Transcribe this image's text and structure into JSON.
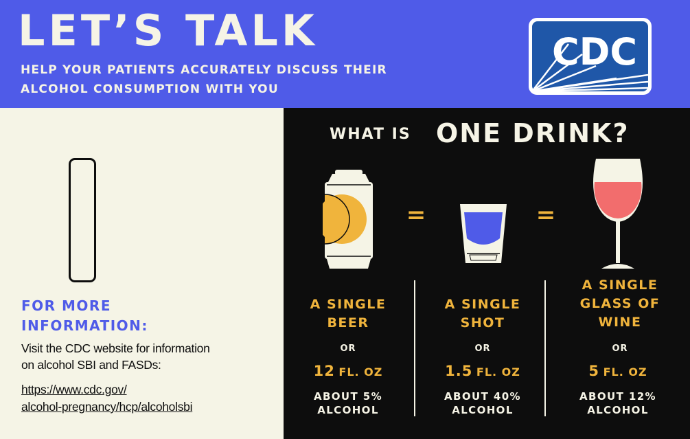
{
  "header": {
    "title": "LET’S TALK",
    "subtitle_lines": [
      "HELP YOUR PATIENTS ACCURATELY DISCUSS THEIR",
      "ALCOHOL CONSUMPTION WITH YOU"
    ],
    "logo_text": "CDC"
  },
  "info": {
    "heading_lines": [
      "FOR MORE",
      "INFORMATION:"
    ],
    "text_lines": [
      "Visit the CDC website for information",
      "on alcohol SBI and FASDs:"
    ],
    "link_lines": [
      "https://www.cdc.gov/",
      "alcohol-pregnancy/hcp/alcoholsbi"
    ]
  },
  "question": {
    "prefix": "WHAT IS",
    "emphasis": "ONE DRINK?"
  },
  "equals": "=",
  "drinks": [
    {
      "name_lines": [
        "A SINGLE",
        "BEER"
      ],
      "or": "OR",
      "amount": "12",
      "unit": "FL. OZ",
      "percent_lines": [
        "ABOUT 5%",
        "ALCOHOL"
      ],
      "icon": "beer-can-icon"
    },
    {
      "name_lines": [
        "A SINGLE",
        "SHOT"
      ],
      "or": "OR",
      "amount": "1.5",
      "unit": "FL. OZ",
      "percent_lines": [
        "ABOUT 40%",
        "ALCOHOL"
      ],
      "icon": "shot-glass-icon"
    },
    {
      "name_lines": [
        "A SINGLE",
        "GLASS OF",
        "WINE"
      ],
      "or": "OR",
      "amount": "5",
      "unit": "FL. OZ",
      "percent_lines": [
        "ABOUT 12%",
        "ALCOHOL"
      ],
      "icon": "wine-glass-icon"
    }
  ],
  "colors": {
    "header_blue": "#4f5be8",
    "cream": "#f5f4e6",
    "black": "#0d0d0d",
    "gold": "#f0b43c",
    "shot_blue": "#4f5be8",
    "wine_pink": "#f26d6d",
    "logo_blue": "#1f57a8"
  }
}
